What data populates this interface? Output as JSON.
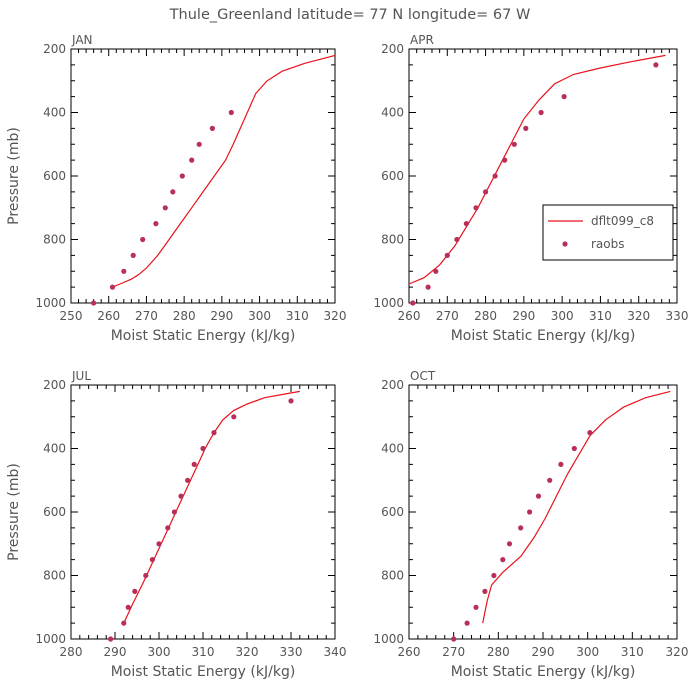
{
  "title": "Thule_Greenland  latitude= 77 N longitude= 67 W",
  "colors": {
    "model": "#e8121c",
    "obs": "#b8305a"
  },
  "legend": {
    "model_label": "dflt099_c8",
    "obs_label": "raobs"
  },
  "chart_data": [
    {
      "type": "line",
      "panel": "JAN",
      "title": "JAN",
      "xlabel": "Moist Static Energy (kJ/kg)",
      "ylabel": "Pressure (mb)",
      "xlim": [
        250,
        320
      ],
      "ylim": [
        1000,
        200
      ],
      "xticks": [
        250,
        260,
        270,
        280,
        290,
        300,
        310,
        320
      ],
      "yticks": [
        200,
        400,
        600,
        800,
        1000
      ],
      "series": [
        {
          "name": "dflt099_c8",
          "kind": "line",
          "x": [
            261,
            263,
            266,
            268,
            270,
            273,
            276,
            279,
            282,
            285,
            288,
            291,
            293,
            296,
            299,
            302,
            306,
            312,
            320
          ],
          "y": [
            950,
            940,
            925,
            910,
            890,
            850,
            800,
            750,
            700,
            650,
            600,
            550,
            500,
            420,
            340,
            300,
            270,
            245,
            220
          ]
        },
        {
          "name": "raobs",
          "kind": "scatter",
          "x": [
            256,
            261,
            264,
            266.5,
            269,
            272.5,
            275,
            277,
            279.5,
            282,
            284,
            287.5,
            292.5
          ],
          "y": [
            1000,
            950,
            900,
            850,
            800,
            750,
            700,
            650,
            600,
            550,
            500,
            450,
            400
          ]
        }
      ]
    },
    {
      "type": "line",
      "panel": "APR",
      "title": "APR",
      "xlabel": "Moist Static Energy (kJ/kg)",
      "ylabel": "",
      "xlim": [
        260,
        330
      ],
      "ylim": [
        1000,
        200
      ],
      "xticks": [
        260,
        270,
        280,
        290,
        300,
        310,
        320,
        330
      ],
      "yticks": [
        200,
        400,
        600,
        800,
        1000
      ],
      "series": [
        {
          "name": "dflt099_c8",
          "kind": "line",
          "x": [
            260,
            264,
            268,
            272,
            275,
            278,
            281,
            284,
            287,
            290,
            294,
            298,
            303,
            310,
            318,
            327
          ],
          "y": [
            940,
            920,
            880,
            820,
            760,
            700,
            630,
            560,
            490,
            420,
            360,
            310,
            280,
            260,
            240,
            220
          ]
        },
        {
          "name": "raobs",
          "kind": "scatter",
          "x": [
            261,
            265,
            267,
            270,
            272.5,
            275,
            277.5,
            280,
            282.5,
            285,
            287.5,
            290.5,
            294.5,
            300.5,
            324.5
          ],
          "y": [
            1000,
            950,
            900,
            850,
            800,
            750,
            700,
            650,
            600,
            550,
            500,
            450,
            400,
            350,
            250
          ]
        }
      ]
    },
    {
      "type": "line",
      "panel": "JUL",
      "title": "JUL",
      "xlabel": "Moist Static Energy (kJ/kg)",
      "ylabel": "Pressure (mb)",
      "xlim": [
        280,
        340
      ],
      "ylim": [
        1000,
        200
      ],
      "xticks": [
        280,
        290,
        300,
        310,
        320,
        330,
        340
      ],
      "yticks": [
        200,
        400,
        600,
        800,
        1000
      ],
      "series": [
        {
          "name": "dflt099_c8",
          "kind": "line",
          "x": [
            292,
            294,
            296.5,
            298.5,
            300.5,
            302.5,
            304.5,
            306.5,
            308.5,
            310.5,
            312.5,
            314.5,
            317,
            320,
            324,
            328,
            332
          ],
          "y": [
            950,
            890,
            820,
            760,
            700,
            640,
            580,
            520,
            460,
            400,
            350,
            310,
            280,
            260,
            240,
            230,
            220
          ]
        },
        {
          "name": "raobs",
          "kind": "scatter",
          "x": [
            289,
            292,
            293,
            294.5,
            297,
            298.5,
            300,
            302,
            303.5,
            305,
            306.5,
            308,
            310,
            312.5,
            317,
            330
          ],
          "y": [
            1000,
            950,
            900,
            850,
            800,
            750,
            700,
            650,
            600,
            550,
            500,
            450,
            400,
            350,
            300,
            250
          ]
        }
      ]
    },
    {
      "type": "line",
      "panel": "OCT",
      "title": "OCT",
      "xlabel": "Moist Static Energy (kJ/kg)",
      "ylabel": "",
      "xlim": [
        260,
        320
      ],
      "ylim": [
        1000,
        200
      ],
      "xticks": [
        260,
        270,
        280,
        290,
        300,
        310,
        320
      ],
      "yticks": [
        200,
        400,
        600,
        800,
        1000
      ],
      "series": [
        {
          "name": "dflt099_c8",
          "kind": "line",
          "x": [
            276.5,
            277.5,
            278.5,
            281,
            285,
            288,
            290.5,
            293,
            295.5,
            298,
            300.5,
            304,
            308,
            313,
            318.5
          ],
          "y": [
            950,
            880,
            830,
            790,
            740,
            680,
            620,
            550,
            480,
            420,
            360,
            310,
            270,
            240,
            220
          ]
        },
        {
          "name": "raobs",
          "kind": "scatter",
          "x": [
            270,
            273,
            275,
            277,
            279,
            281,
            282.5,
            285,
            287,
            289,
            291.5,
            294,
            297,
            300.5
          ],
          "y": [
            1000,
            950,
            900,
            850,
            800,
            750,
            700,
            650,
            600,
            550,
            500,
            450,
            400,
            350
          ]
        }
      ]
    }
  ]
}
